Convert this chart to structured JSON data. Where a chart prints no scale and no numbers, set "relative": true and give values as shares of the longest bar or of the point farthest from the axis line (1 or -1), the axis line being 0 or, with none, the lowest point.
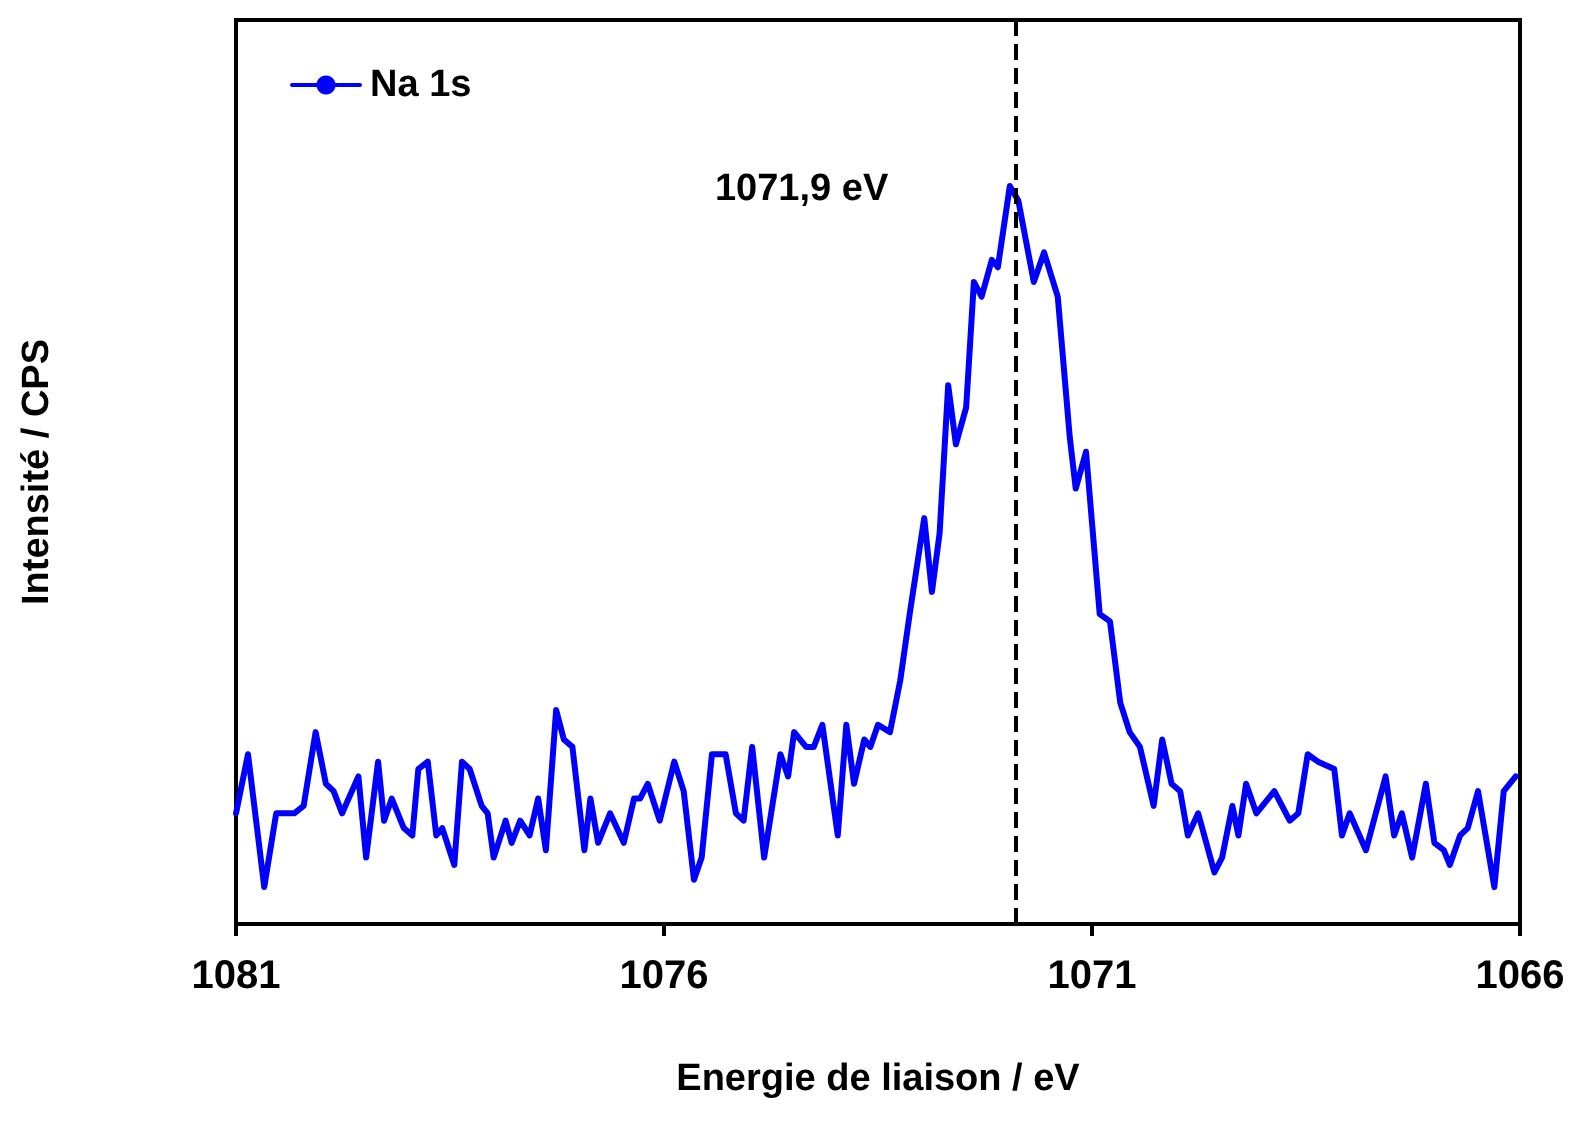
{
  "chart_data": {
    "type": "line",
    "relative": true,
    "xlabel": "Energie de liaison / eV",
    "ylabel": "Intensité / CPS",
    "xlim": [
      1081,
      1066
    ],
    "xticks": [
      1081,
      1076,
      1071,
      1066
    ],
    "tick_labels": "x",
    "grid": false,
    "legend": "top left",
    "marker": "none",
    "line_style": "solid",
    "ref_lines": [
      {
        "axis": "x",
        "value": 1071.9,
        "label": "1071,9 eV",
        "color": "#000000",
        "line_style": "dashed"
      }
    ],
    "series": [
      {
        "name": "Na 1s",
        "color": "#0000ff",
        "x": [
          1081.0,
          1080.86,
          1080.67,
          1080.53,
          1080.32,
          1080.21,
          1080.07,
          1079.95,
          1079.86,
          1079.76,
          1079.57,
          1079.48,
          1079.34,
          1079.27,
          1079.18,
          1079.04,
          1078.94,
          1078.87,
          1078.76,
          1078.66,
          1078.59,
          1078.45,
          1078.36,
          1078.27,
          1078.13,
          1078.06,
          1077.99,
          1077.85,
          1077.78,
          1077.68,
          1077.57,
          1077.47,
          1077.38,
          1077.26,
          1077.17,
          1077.07,
          1076.93,
          1076.86,
          1076.77,
          1076.63,
          1076.47,
          1076.35,
          1076.28,
          1076.19,
          1076.05,
          1075.88,
          1075.77,
          1075.65,
          1075.56,
          1075.44,
          1075.28,
          1075.16,
          1075.07,
          1074.97,
          1074.83,
          1074.64,
          1074.55,
          1074.48,
          1074.34,
          1074.25,
          1074.15,
          1073.97,
          1073.87,
          1073.78,
          1073.66,
          1073.59,
          1073.5,
          1073.36,
          1073.24,
          1073.13,
          1072.96,
          1072.87,
          1072.78,
          1072.68,
          1072.59,
          1072.47,
          1072.38,
          1072.29,
          1072.17,
          1072.1,
          1071.96,
          1071.86,
          1071.68,
          1071.56,
          1071.4,
          1071.26,
          1071.19,
          1071.07,
          1070.91,
          1070.79,
          1070.67,
          1070.56,
          1070.44,
          1070.28,
          1070.18,
          1070.07,
          1069.97,
          1069.88,
          1069.76,
          1069.57,
          1069.48,
          1069.36,
          1069.29,
          1069.2,
          1069.08,
          1068.87,
          1068.69,
          1068.59,
          1068.48,
          1068.36,
          1068.17,
          1068.08,
          1067.99,
          1067.8,
          1067.57,
          1067.47,
          1067.38,
          1067.26,
          1067.1,
          1067.0,
          1066.89,
          1066.82,
          1066.7,
          1066.61,
          1066.49,
          1066.3,
          1066.19,
          1066.05
        ],
        "values": [
          0.15,
          0.23,
          0.05,
          0.15,
          0.15,
          0.16,
          0.26,
          0.19,
          0.18,
          0.15,
          0.2,
          0.09,
          0.22,
          0.14,
          0.17,
          0.13,
          0.12,
          0.21,
          0.22,
          0.12,
          0.13,
          0.08,
          0.22,
          0.21,
          0.16,
          0.15,
          0.09,
          0.14,
          0.11,
          0.14,
          0.12,
          0.17,
          0.1,
          0.29,
          0.25,
          0.24,
          0.1,
          0.17,
          0.11,
          0.15,
          0.11,
          0.17,
          0.17,
          0.19,
          0.14,
          0.22,
          0.18,
          0.06,
          0.09,
          0.23,
          0.23,
          0.15,
          0.14,
          0.24,
          0.09,
          0.23,
          0.2,
          0.26,
          0.24,
          0.24,
          0.27,
          0.12,
          0.27,
          0.19,
          0.25,
          0.24,
          0.27,
          0.26,
          0.33,
          0.42,
          0.55,
          0.45,
          0.53,
          0.73,
          0.65,
          0.7,
          0.87,
          0.85,
          0.9,
          0.89,
          1.0,
          0.98,
          0.87,
          0.91,
          0.85,
          0.66,
          0.59,
          0.64,
          0.42,
          0.41,
          0.3,
          0.26,
          0.24,
          0.16,
          0.25,
          0.19,
          0.18,
          0.12,
          0.15,
          0.07,
          0.09,
          0.16,
          0.12,
          0.19,
          0.15,
          0.18,
          0.14,
          0.15,
          0.23,
          0.22,
          0.21,
          0.12,
          0.15,
          0.1,
          0.2,
          0.12,
          0.15,
          0.09,
          0.19,
          0.11,
          0.1,
          0.08,
          0.12,
          0.13,
          0.18,
          0.05,
          0.18,
          0.2
        ]
      }
    ]
  }
}
